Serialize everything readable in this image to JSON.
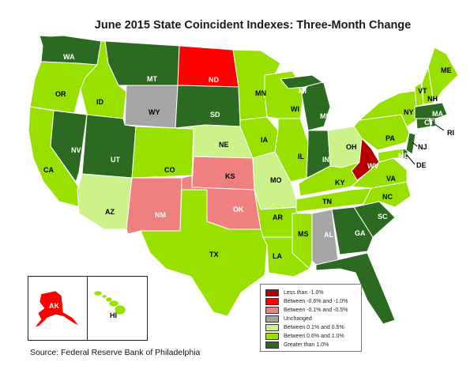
{
  "title": "June 2015 State Coincident Indexes: Three-Month Change",
  "source": "Source: Federal Reserve Bank of Philadelphia",
  "colors": {
    "lt_neg1": "#b60000",
    "neg06_neg1": "#ff0000",
    "neg01_neg05": "#f08080",
    "unchanged": "#a6a6a6",
    "pos01_05": "#ccf28c",
    "pos06_1": "#99e000",
    "gt1": "#2b6a20"
  },
  "legend": [
    {
      "key": "lt_neg1",
      "label": "Less than -1.0%"
    },
    {
      "key": "neg06_neg1",
      "label": "Between -0.6% and -1.0%"
    },
    {
      "key": "neg01_neg05",
      "label": "Between -0.1% and -0.5%"
    },
    {
      "key": "unchanged",
      "label": "Unchanged"
    },
    {
      "key": "pos01_05",
      "label": "Between 0.1% and 0.5%"
    },
    {
      "key": "pos06_1",
      "label": "Between 0.6% and 1.0%"
    },
    {
      "key": "gt1",
      "label": "Greater than 1.0%"
    }
  ],
  "states": {
    "WA": "gt1",
    "OR": "pos06_1",
    "CA": "pos06_1",
    "ID": "pos06_1",
    "NV": "gt1",
    "MT": "gt1",
    "WY": "unchanged",
    "UT": "gt1",
    "AZ": "pos01_05",
    "CO": "pos06_1",
    "NM": "neg01_neg05",
    "ND": "neg06_neg1",
    "SD": "gt1",
    "NE": "pos01_05",
    "KS": "neg01_neg05",
    "OK": "neg01_neg05",
    "TX": "pos06_1",
    "MN": "pos06_1",
    "IA": "pos06_1",
    "MO": "pos01_05",
    "AR": "pos06_1",
    "LA": "pos06_1",
    "WI": "pos06_1",
    "IL": "pos06_1",
    "MS": "pos06_1",
    "MI": "gt1",
    "IN": "gt1",
    "OH": "pos01_05",
    "KY": "pos06_1",
    "TN": "pos06_1",
    "AL": "unchanged",
    "GA": "gt1",
    "FL": "gt1",
    "SC": "gt1",
    "NC": "pos06_1",
    "VA": "pos06_1",
    "WV": "lt_neg1",
    "MD": "pos06_1",
    "DE": "gt1",
    "NJ": "gt1",
    "PA": "pos06_1",
    "NY": "pos06_1",
    "CT": "gt1",
    "RI": "gt1",
    "MA": "gt1",
    "VT": "pos06_1",
    "NH": "pos06_1",
    "ME": "pos06_1",
    "AK": "neg06_neg1",
    "HI": "pos06_1"
  }
}
